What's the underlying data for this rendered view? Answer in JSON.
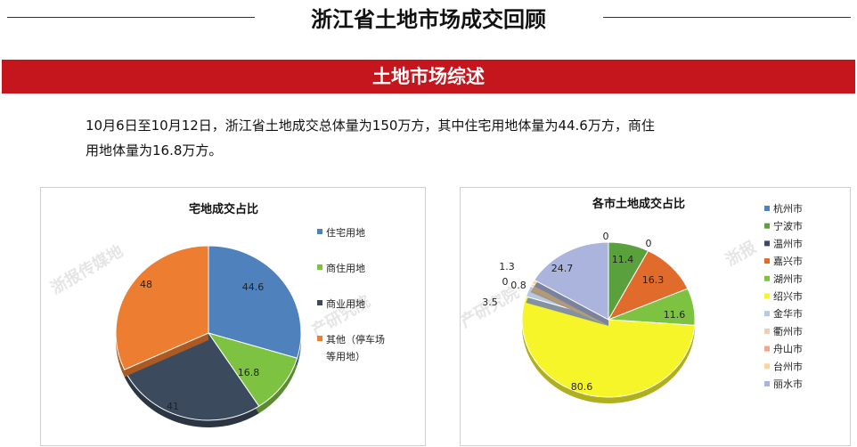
{
  "header": {
    "title": "浙江省土地市场成交回顾"
  },
  "banner": {
    "title": "土地市场综述"
  },
  "summary": {
    "line1": "10月6日至10月12日，浙江省土地成交总体量为150万方，其中住宅用地体量为44.6万方，商住",
    "line2": "用地体量为16.8万方。"
  },
  "watermarks": {
    "left": "浙报传媒地",
    "mid": "产研究院",
    "right": "浙报"
  },
  "colors": {
    "banner_red": "#c4161c"
  },
  "chart_data": [
    {
      "type": "pie",
      "title": "宅地成交占比",
      "legend_position": "right",
      "slices": [
        {
          "label": "住宅用地",
          "value": 44.6,
          "color": "#4f81bd"
        },
        {
          "label": "商住用地",
          "value": 16.8,
          "color": "#7ec242"
        },
        {
          "label": "商业用地",
          "value": 41,
          "color": "#3c4a5e"
        },
        {
          "label": "其他（停车场等用地）",
          "value": 48,
          "color": "#ed7d31"
        }
      ],
      "legend": [
        "住宅用地",
        "商住用地",
        "商业用地",
        "其他（停车场",
        "等用地）"
      ]
    },
    {
      "type": "pie",
      "title": "各市土地成交占比",
      "legend_position": "right",
      "slices": [
        {
          "label": "杭州市",
          "value": 0,
          "color": "#4f81bd"
        },
        {
          "label": "宁波市",
          "value": 11.4,
          "color": "#5aa03c"
        },
        {
          "label": "温州市",
          "value": 0,
          "color": "#3c4a5e"
        },
        {
          "label": "嘉兴市",
          "value": 16.3,
          "color": "#e06b2a"
        },
        {
          "label": "湖州市",
          "value": 11.6,
          "color": "#7ec242"
        },
        {
          "label": "绍兴市",
          "value": 80.6,
          "color": "#f5f52a"
        },
        {
          "label": "金华市",
          "value": 3.5,
          "color": "#b7c9e2"
        },
        {
          "label": "衢州市",
          "value": 0.8,
          "color": "#e8d1b5"
        },
        {
          "label": "舟山市",
          "value": 0,
          "color": "#f2a58a"
        },
        {
          "label": "台州市",
          "value": 1.3,
          "color": "#fbd49c"
        },
        {
          "label": "丽水市",
          "value": 24.7,
          "color": "#aab4dc"
        }
      ],
      "value_labels": [
        "0",
        "11.4",
        "0",
        "16.3",
        "11.6",
        "80.6",
        "3.5",
        "0.8",
        "0",
        "1.3",
        "24.7"
      ]
    }
  ]
}
